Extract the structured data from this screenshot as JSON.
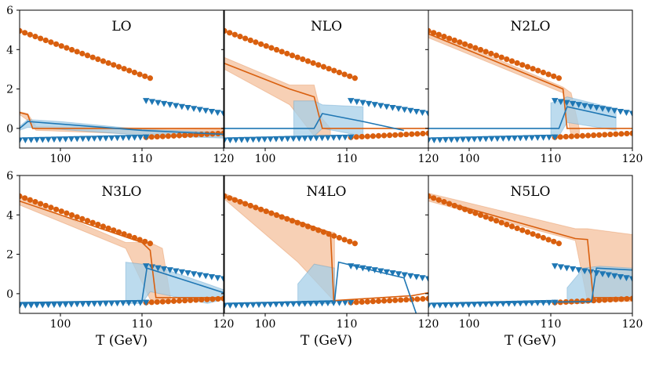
{
  "colors": {
    "orange": "#d95f0e",
    "orange_band": "#f4c09c",
    "blue": "#1f77b4",
    "blue_fill": "#2b8cbe",
    "blue_band": "#a6cfe8",
    "overlap": "#7f8f98"
  },
  "chart_data": {
    "type": "line",
    "xlabel": "T (GeV)",
    "x_tick_labels": [
      "100",
      "110",
      "120"
    ],
    "y_tick_labels": [
      "0",
      "2",
      "4",
      "6"
    ],
    "xlim": [
      95,
      120
    ],
    "ylim": [
      -1,
      6
    ],
    "xticks": [
      100,
      110,
      120
    ],
    "yticks": [
      0,
      2,
      4,
      6
    ],
    "reference_markers": {
      "orange_circles": [
        {
          "x": [
            95,
            111
          ],
          "y": [
            4.95,
            2.55
          ]
        },
        {
          "x": [
            110.5,
            120
          ],
          "y": [
            -0.45,
            -0.25
          ]
        }
      ],
      "blue_triangles": [
        {
          "x": [
            95,
            110.5
          ],
          "y": [
            -0.6,
            -0.45
          ]
        },
        {
          "x": [
            110.5,
            120
          ],
          "y": [
            1.4,
            0.75
          ]
        }
      ]
    },
    "panels": [
      {
        "title": "LO",
        "orange_line": [
          [
            95,
            0.8
          ],
          [
            96,
            0.7
          ],
          [
            96.6,
            0
          ],
          [
            120,
            0
          ]
        ],
        "orange_band": {
          "x": [
            95,
            96,
            97,
            120
          ],
          "upper": [
            0.85,
            0.75,
            0.1,
            -0.05
          ],
          "lower": [
            0.7,
            0.4,
            -0.1,
            -0.45
          ]
        },
        "blue_line": [
          [
            95,
            0
          ],
          [
            96,
            0.35
          ],
          [
            110,
            -0.1
          ],
          [
            120,
            -0.3
          ]
        ],
        "blue_band": {
          "x": [
            95,
            96,
            100,
            110,
            120
          ],
          "upper": [
            0.1,
            0.45,
            0.35,
            -0.05,
            -0.2
          ],
          "lower": [
            -0.1,
            0.05,
            -0.05,
            -0.35,
            -0.5
          ]
        }
      },
      {
        "title": "NLO",
        "orange_line": [
          [
            95,
            3.3
          ],
          [
            103,
            2.0
          ],
          [
            106,
            1.6
          ],
          [
            107,
            0
          ],
          [
            120,
            0
          ]
        ],
        "orange_band": {
          "x": [
            95,
            103,
            106,
            107,
            108
          ],
          "upper": [
            3.6,
            2.2,
            2.2,
            0.5,
            0
          ],
          "lower": [
            3.0,
            1.2,
            -0.4,
            -0.4,
            -0.4
          ]
        },
        "blue_line": [
          [
            95,
            0
          ],
          [
            106,
            0
          ],
          [
            107,
            0.75
          ],
          [
            112,
            0.35
          ],
          [
            117,
            -0.1
          ]
        ],
        "blue_band": {
          "x": [
            103.5,
            106,
            107,
            112
          ],
          "upper": [
            1.4,
            1.4,
            1.2,
            1.1
          ],
          "lower": [
            -0.4,
            -0.4,
            0,
            -0.4
          ]
        }
      },
      {
        "title": "N2LO",
        "orange_line": [
          [
            95,
            4.8
          ],
          [
            111.5,
            2.0
          ],
          [
            112,
            0
          ],
          [
            120,
            0
          ]
        ],
        "orange_band": {
          "x": [
            95,
            111.5,
            112.5,
            113.5
          ],
          "upper": [
            5.0,
            2.1,
            1.8,
            0
          ],
          "lower": [
            4.6,
            1.8,
            -0.4,
            -0.4
          ]
        },
        "blue_line": [
          [
            95,
            0
          ],
          [
            111,
            0
          ],
          [
            112,
            1.1
          ],
          [
            118,
            0.55
          ]
        ],
        "blue_band": {
          "x": [
            110,
            111,
            112,
            118
          ],
          "upper": [
            1.3,
            1.4,
            1.6,
            1.0
          ],
          "lower": [
            -0.4,
            -0.4,
            0.3,
            -0.1
          ]
        }
      },
      {
        "title": "N3LO",
        "orange_line": [
          [
            95,
            4.7
          ],
          [
            110,
            2.6
          ],
          [
            111,
            2.2
          ],
          [
            111.7,
            -0.2
          ],
          [
            120,
            -0.2
          ]
        ],
        "orange_band": {
          "x": [
            95,
            108,
            111,
            112.5,
            113.5
          ],
          "upper": [
            4.9,
            2.6,
            2.6,
            2.3,
            -0.2
          ],
          "lower": [
            4.5,
            2.3,
            -0.3,
            -0.4,
            -0.4
          ]
        },
        "blue_line": [
          [
            95,
            -0.45
          ],
          [
            110,
            -0.35
          ],
          [
            110.6,
            1.3
          ],
          [
            120,
            0.05
          ]
        ],
        "blue_band": {
          "x": [
            108,
            110,
            111,
            118,
            120
          ],
          "upper": [
            1.6,
            1.5,
            1.5,
            0.5,
            0.2
          ],
          "lower": [
            -0.5,
            -0.5,
            0.1,
            -0.5,
            -0.3
          ]
        }
      },
      {
        "title": "N4LO",
        "orange_line": [
          [
            95,
            4.95
          ],
          [
            108,
            3.1
          ],
          [
            108.4,
            -0.35
          ],
          [
            118,
            -0.1
          ],
          [
            120,
            0.05
          ]
        ],
        "orange_band": {
          "x": [
            95,
            104,
            108.5
          ],
          "upper": [
            5.1,
            3.5,
            3.1
          ],
          "lower": [
            4.8,
            1.6,
            -0.4
          ]
        },
        "blue_line": [
          [
            95,
            -0.5
          ],
          [
            108.5,
            -0.4
          ],
          [
            109,
            1.6
          ],
          [
            117,
            0.8
          ],
          [
            118.5,
            -1.0
          ]
        ],
        "blue_band": {
          "x": [
            104,
            106,
            108.5
          ],
          "upper": [
            0.5,
            1.5,
            1.3
          ],
          "lower": [
            -0.5,
            -0.5,
            -0.5
          ]
        }
      },
      {
        "title": "N5LO",
        "orange_line": [
          [
            95,
            4.9
          ],
          [
            113,
            2.8
          ],
          [
            114.5,
            2.75
          ],
          [
            115.2,
            -0.2
          ],
          [
            120,
            -0.2
          ]
        ],
        "orange_band": {
          "x": [
            95,
            113,
            114.5,
            120
          ],
          "upper": [
            5.1,
            3.3,
            3.3,
            3.0
          ],
          "lower": [
            4.7,
            2.7,
            -0.4,
            -0.4
          ]
        },
        "blue_line": [
          [
            95,
            -0.5
          ],
          [
            115,
            -0.4
          ],
          [
            115.6,
            1.3
          ],
          [
            120,
            1.2
          ]
        ],
        "blue_band": {
          "x": [
            112,
            114,
            116,
            120
          ],
          "upper": [
            0.3,
            1.3,
            1.4,
            1.3
          ],
          "lower": [
            -0.5,
            -0.5,
            -0.4,
            -0.3
          ]
        }
      }
    ]
  }
}
